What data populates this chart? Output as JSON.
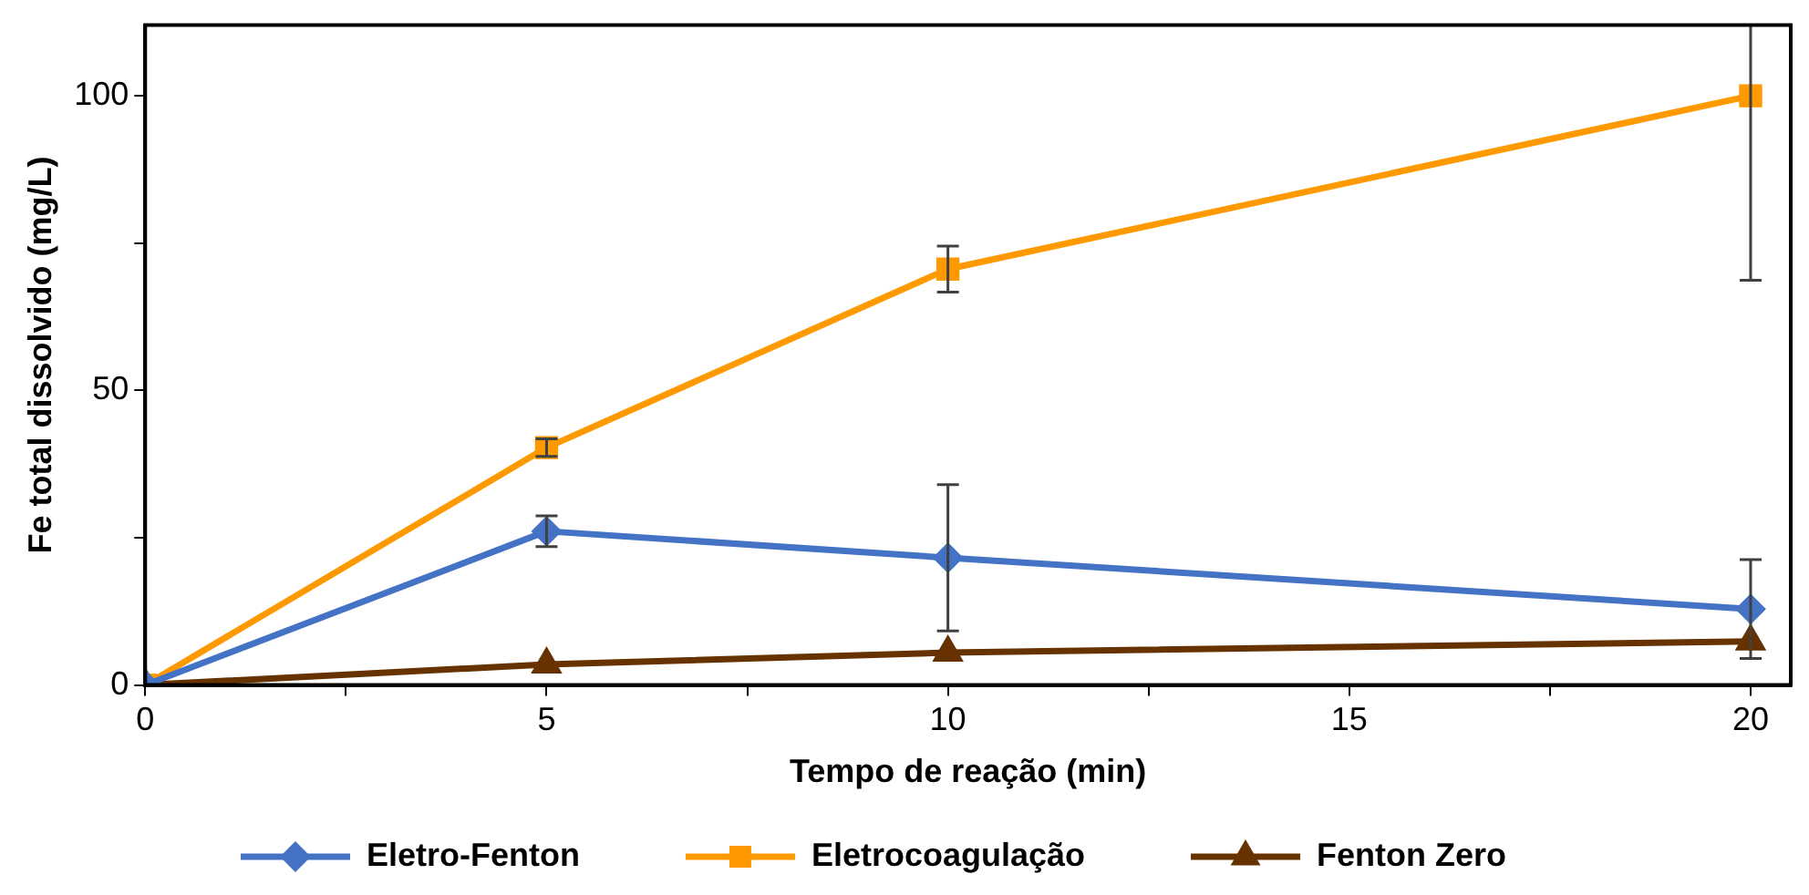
{
  "chart_data": {
    "type": "line",
    "xlabel": "Tempo de reação (min)",
    "ylabel": "Fe total dissolvido (mg/L)",
    "x": [
      0,
      5,
      10,
      20
    ],
    "xlim": [
      0,
      20.5
    ],
    "xticks": [
      0,
      {
        "value": 2.5,
        "label": null
      },
      5,
      {
        "value": 7.5,
        "label": null
      },
      10,
      {
        "value": 12.5,
        "label": null
      },
      15,
      {
        "value": 17.5,
        "label": null
      },
      20
    ],
    "ylim": [
      0,
      112
    ],
    "yticks": [
      0,
      {
        "value": 25,
        "label": null
      },
      50,
      {
        "value": 75,
        "label": null
      },
      100
    ],
    "grid": false,
    "legend": "bottom",
    "line_style": "solid",
    "series": [
      {
        "name": "Eletro-Fenton",
        "color": "#4472c4",
        "marker": "diamond",
        "values": [
          0,
          26.1,
          21.6,
          12.9
        ],
        "errors": [
          null,
          2.6,
          12.4,
          8.4
        ]
      },
      {
        "name": "Eletrocoagulação",
        "color": "#ff9900",
        "marker": "square",
        "values": [
          0,
          40.3,
          70.6,
          100
        ],
        "errors": [
          null,
          1.5,
          3.9,
          [
            68.7,
            112
          ]
        ]
      },
      {
        "name": "Fenton Zero",
        "color": "#663300",
        "marker": "triangle",
        "values": [
          0,
          3.5,
          5.5,
          7.4
        ]
      }
    ]
  }
}
